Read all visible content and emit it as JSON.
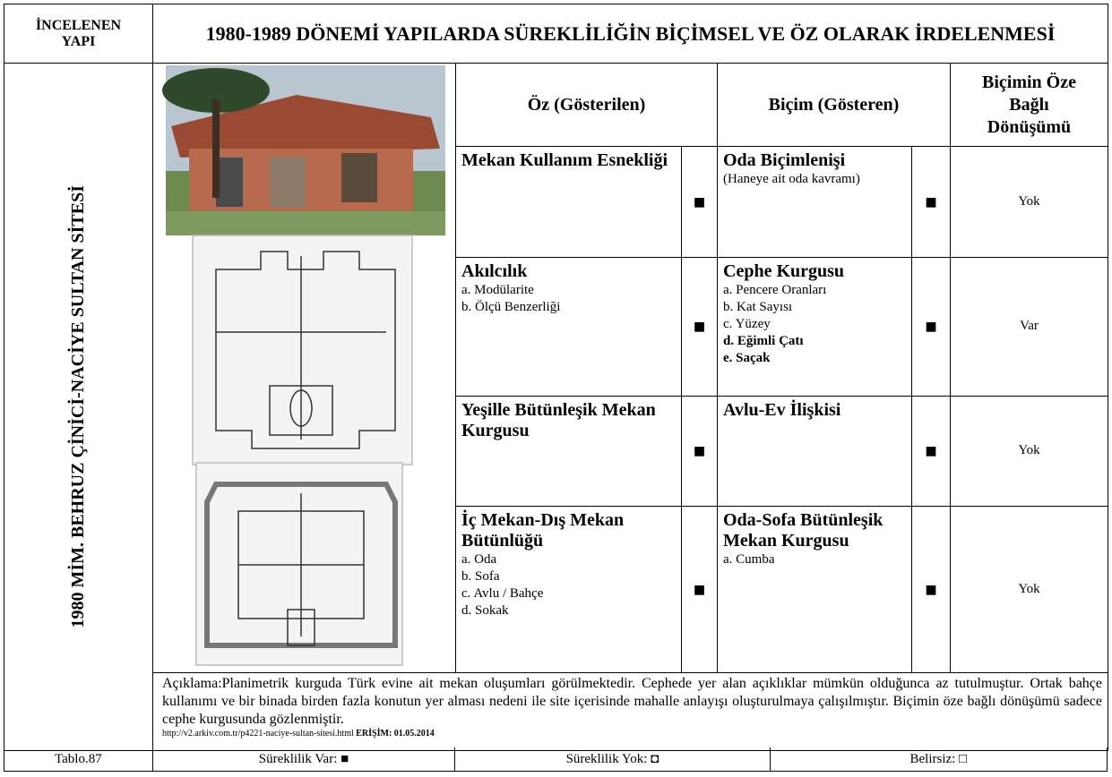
{
  "header": {
    "left": "İNCELENEN YAPI",
    "title": "1980-1989 DÖNEMİ YAPILARDA SÜREKLİLİĞİN BİÇİMSEL VE ÖZ OLARAK İRDELENMESİ"
  },
  "building": "1980 MİM. BEHRUZ ÇİNİCİ-NACİYE SULTAN SİTESİ",
  "columns": [
    "Öz (Gösterilen)",
    "Biçim (Gösteren)",
    "Biçimin Öze Bağlı Dönüşümü"
  ],
  "rows": [
    {
      "oz": {
        "title": "Mekan Kullanım Esnekliği"
      },
      "oz_mark": "■",
      "bicim": {
        "title": "Oda Biçimlenişi",
        "items": [
          "(Haneye ait oda kavramı)"
        ]
      },
      "bicim_mark": "■",
      "donusum": "Yok"
    },
    {
      "oz": {
        "title": "Akılcılık",
        "items": [
          "a. Modülarite",
          "b. Ölçü Benzerliği"
        ]
      },
      "oz_mark": "■",
      "bicim": {
        "title": "Cephe Kurgusu",
        "items": [
          "a. Pencere Oranları",
          "b. Kat Sayısı",
          "c. Yüzey",
          "d. Eğimli Çatı",
          "e. Saçak"
        ]
      },
      "bicim_mark": "■",
      "donusum": "Var"
    },
    {
      "oz": {
        "title": "Yeşille Bütünleşik Mekan Kurgusu"
      },
      "oz_mark": "■",
      "bicim": {
        "title": "Avlu-Ev İlişkisi"
      },
      "bicim_mark": "■",
      "donusum": "Yok"
    },
    {
      "oz": {
        "title": "İç Mekan-Dış Mekan Bütünlüğü",
        "items": [
          "a. Oda",
          "b. Sofa",
          "c. Avlu / Bahçe",
          "d. Sokak"
        ]
      },
      "oz_mark": "■",
      "bicim": {
        "title": "Oda-Sofa Bütünleşik Mekan Kurgusu",
        "items": [
          "a. Cumba"
        ]
      },
      "bicim_mark": "■",
      "donusum": "Yok"
    }
  ],
  "description": "Açıklama:Planimetrik kurguda Türk evine ait mekan oluşumları görülmektedir. Cephede yer alan açıklıklar mümkün olduğunca az tutulmuştur. Ortak bahçe kullanımı ve bir binada birden fazla konutun yer alması nedeni ile site içerisinde mahalle anlayışı oluşturulmaya çalışılmıştır. Biçimin öze bağlı dönüşümü sadece cephe kurgusunda gözlenmiştir.",
  "source": {
    "url": "http://v2.arkiv.com.tr/p4221-naciye-sultan-sitesi.html",
    "access": "ERİŞİM: 01.05.2014"
  },
  "footer": [
    "Tablo.87",
    "Süreklilik Var: ■",
    "Süreklilik Yok: ◘",
    "Belirsiz: □"
  ]
}
